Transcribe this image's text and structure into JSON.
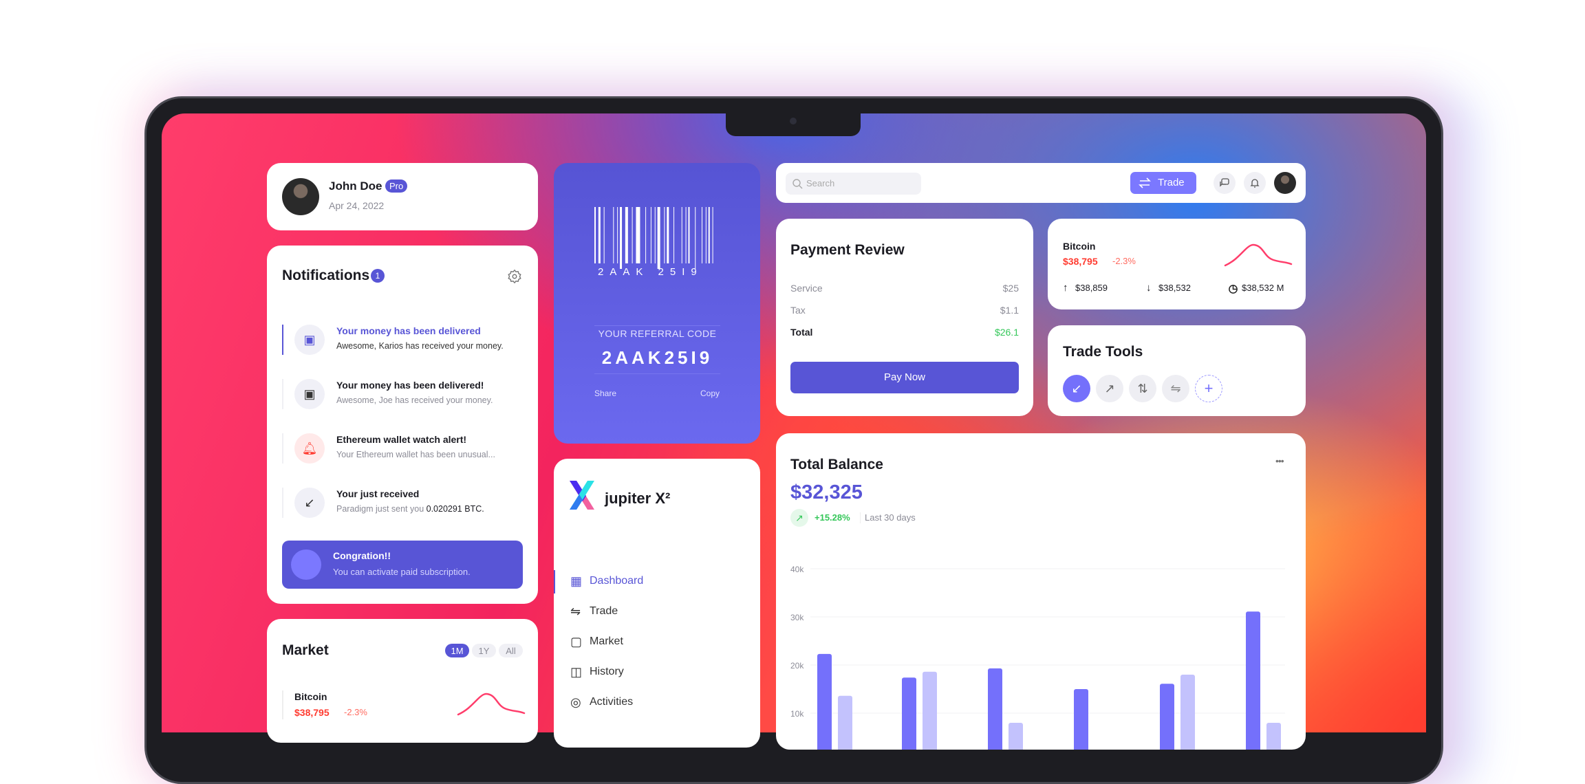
{
  "profile": {
    "name": "John Doe",
    "badge": "Pro",
    "date": "Apr 24, 2022"
  },
  "notifications": {
    "title": "Notifications",
    "count": "1",
    "items": [
      {
        "title": "Your money has been delivered",
        "text": "Awesome, Karios has received your money.",
        "icon": "money-icon",
        "active": true
      },
      {
        "title": "Your money has been delivered!",
        "text": "Awesome, Joe has received your money.",
        "icon": "money-icon"
      },
      {
        "title": "Ethereum wallet watch alert!",
        "text": "Your Ethereum wallet has been unusual...",
        "icon": "bell-icon"
      },
      {
        "title": "Your just received",
        "text": "Paradigm just sent you ",
        "amount": "0.020291 BTC.",
        "icon": "receive-icon"
      }
    ],
    "promo": {
      "title": "Congration!!",
      "text": "You can activate paid subscription."
    }
  },
  "market": {
    "title": "Market",
    "ranges": [
      "1M",
      "1Y",
      "All"
    ],
    "selected": "1M",
    "coin": {
      "name": "Bitcoin",
      "price": "$38,795",
      "change": "-2.3%"
    }
  },
  "referral": {
    "barcode_text": "2AAK 25I9",
    "label": "YOUR REFERRAL CODE",
    "code": "2AAK25I9",
    "share": "Share",
    "copy": "Copy"
  },
  "sidebar": {
    "brand": "jupiter X²",
    "items": [
      {
        "label": "Dashboard",
        "icon": "dashboard-icon",
        "active": true
      },
      {
        "label": "Trade",
        "icon": "trade-icon"
      },
      {
        "label": "Market",
        "icon": "market-icon"
      },
      {
        "label": "History",
        "icon": "history-icon"
      },
      {
        "label": "Activities",
        "icon": "activities-icon"
      }
    ]
  },
  "topbar": {
    "search_placeholder": "Search",
    "trade_label": "Trade"
  },
  "payment": {
    "title": "Payment Review",
    "rows": [
      {
        "label": "Service",
        "value": "$25"
      },
      {
        "label": "Tax",
        "value": "$1.1"
      },
      {
        "label": "Total",
        "value": "$26.1"
      }
    ],
    "button": "Pay Now"
  },
  "bitcoin": {
    "name": "Bitcoin",
    "price": "$38,795",
    "change": "-2.3%",
    "high": "$38,859",
    "low": "$38,532",
    "volume": "$38,532 M"
  },
  "trade_tools": {
    "title": "Trade Tools",
    "tools": [
      "receive-icon",
      "send-icon",
      "swap-vertical-icon",
      "exchange-icon",
      "add-icon"
    ]
  },
  "balance": {
    "title": "Total Balance",
    "amount": "$32,325",
    "change": "+15.28%",
    "period": "Last 30 days"
  },
  "colors": {
    "accent": "#5855d6",
    "bar_dark": "#7470fb",
    "bar_light": "#c3c2fd",
    "negative": "#ff3b30",
    "positive": "#34c759"
  },
  "chart_data": {
    "type": "bar",
    "yticks": [
      "40k",
      "30k",
      "20k",
      "10k"
    ],
    "ylim": [
      0,
      40000
    ],
    "grid": true,
    "series": [
      {
        "values": [
          22300,
          17400,
          19300,
          15000,
          16100,
          31100
        ]
      },
      {
        "values": [
          13600,
          18600,
          8000,
          null,
          18000,
          8000
        ]
      }
    ]
  }
}
